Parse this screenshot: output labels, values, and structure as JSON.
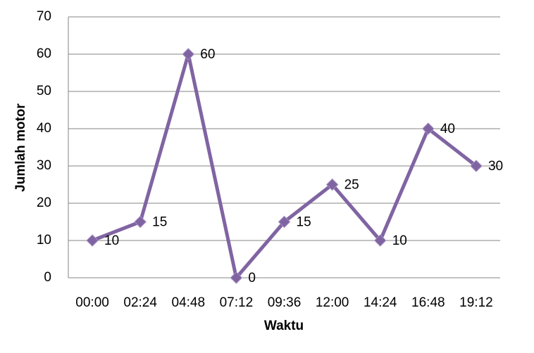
{
  "chart_data": {
    "type": "line",
    "x_label": "Waktu",
    "y_label": "Jumlah motor",
    "categories": [
      "00:00",
      "02:24",
      "04:48",
      "07:12",
      "09:36",
      "12:00",
      "14:24",
      "16:48",
      "19:12"
    ],
    "series": [
      {
        "color": "#8064a2",
        "values": [
          10,
          15,
          60,
          0,
          15,
          25,
          10,
          40,
          30
        ]
      }
    ],
    "ylim": [
      0,
      70
    ],
    "yticks": [
      0,
      10,
      20,
      30,
      40,
      50,
      60,
      70
    ],
    "grid": true,
    "data_labels": true
  }
}
